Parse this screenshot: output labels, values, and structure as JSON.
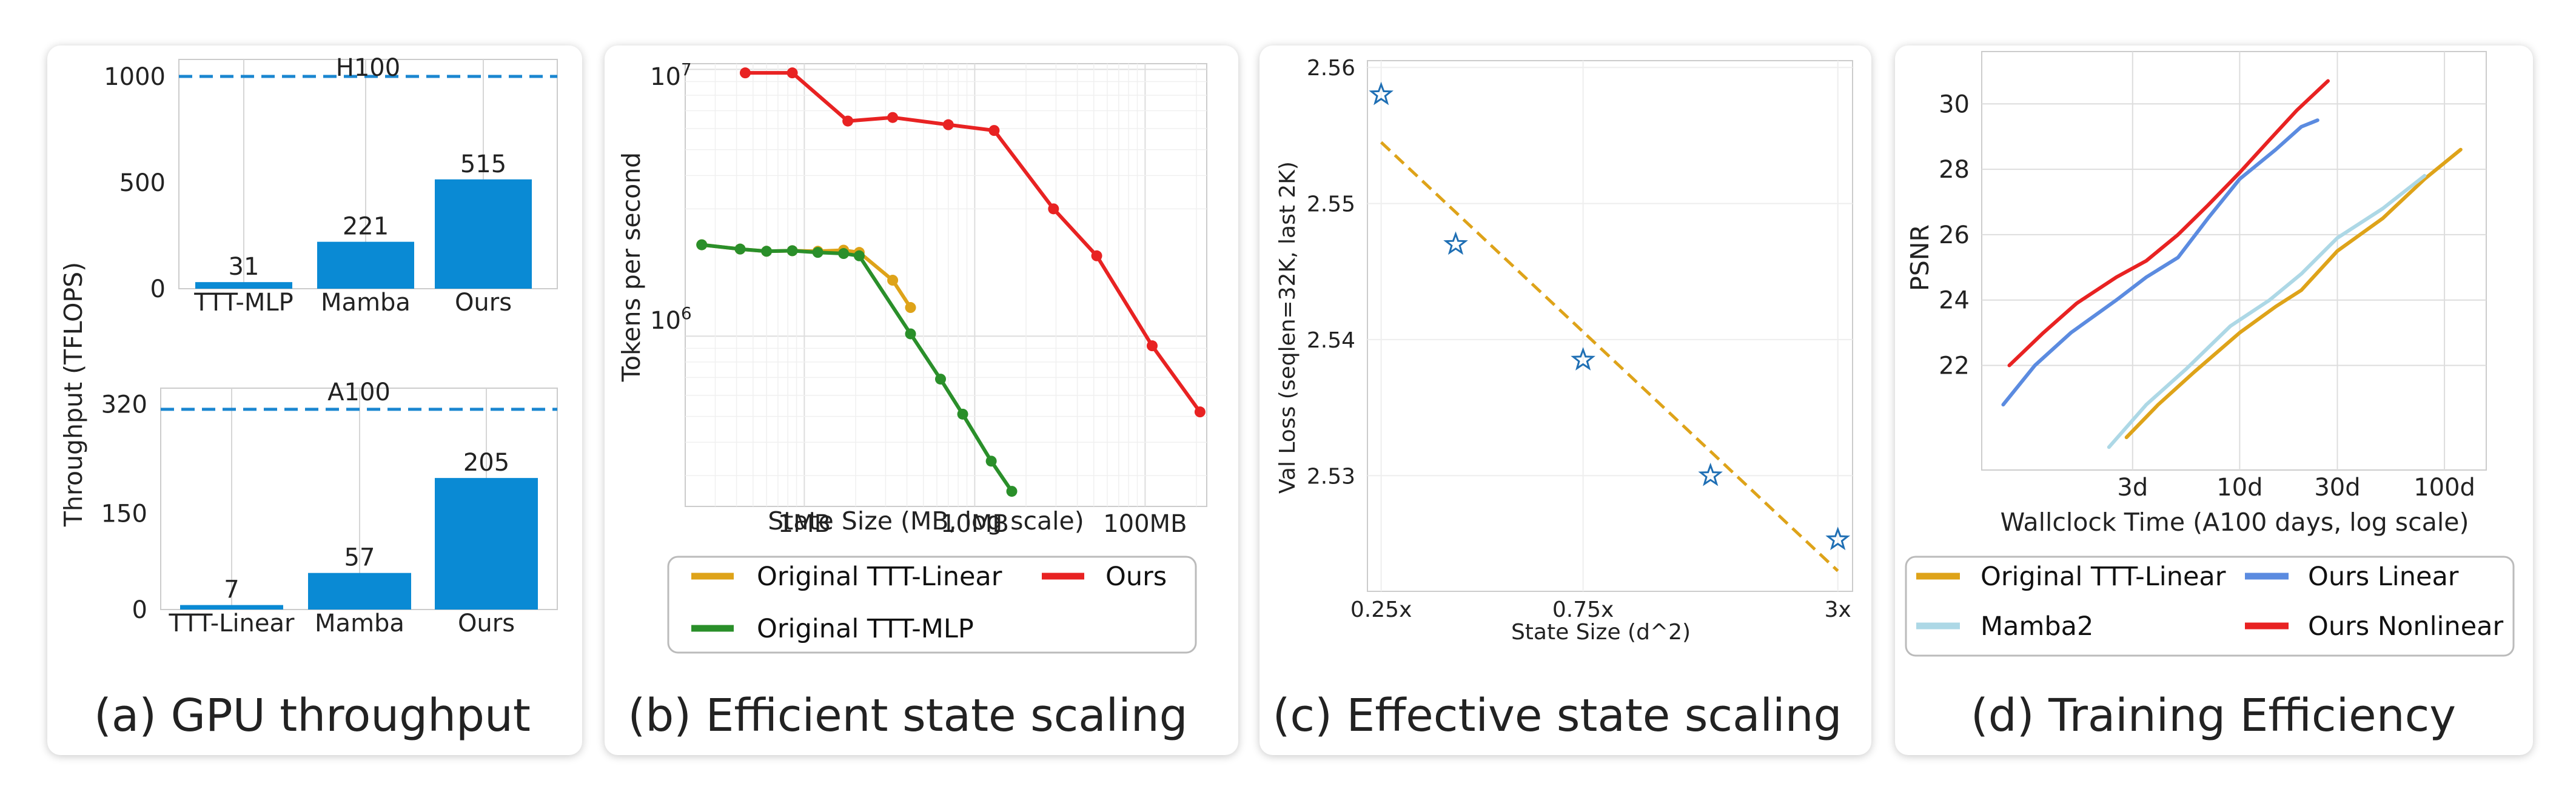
{
  "chart_data": [
    {
      "type": "bar",
      "caption": "(a) GPU throughput",
      "ylabel": "Throughput (TFLOPS)",
      "subplots": [
        {
          "title": "H100",
          "categories": [
            "TTT-MLP",
            "Mamba",
            "Ours"
          ],
          "values": [
            31,
            221,
            515
          ],
          "value_labels": [
            "31",
            "221",
            "515"
          ],
          "yticks": [
            "0",
            "500",
            "1000"
          ],
          "ylim": [
            0,
            1080
          ],
          "reference_line": 1000
        },
        {
          "title": "A100",
          "categories": [
            "TTT-Linear",
            "Mamba",
            "Ours"
          ],
          "values": [
            7,
            57,
            205
          ],
          "value_labels": [
            "7",
            "57",
            "205"
          ],
          "yticks": [
            "0",
            "150",
            "320"
          ],
          "ylim": [
            0,
            345
          ],
          "reference_line": 312
        }
      ],
      "color": "#0a8ad4"
    },
    {
      "type": "line",
      "caption": "(b) Efficient state scaling",
      "ylabel": "Tokens per second",
      "xlabel": "State Size (MB, log scale)",
      "xscale": "log",
      "yscale": "log",
      "xlim": [
        0.2,
        230
      ],
      "ylim": [
        230000,
        10500000
      ],
      "xticks": [
        "1MB",
        "10MB",
        "100MB"
      ],
      "yticks": [
        "10",
        "10"
      ],
      "ytick_exponents": [
        "7",
        "6"
      ],
      "series": [
        {
          "name": "Original TTT-Linear",
          "color": "#dea319",
          "x": [
            0.25,
            0.42,
            0.6,
            0.85,
            1.2,
            1.7,
            2.1,
            3.3,
            4.2
          ],
          "y": [
            2200000,
            2120000,
            2080000,
            2090000,
            2080000,
            2100000,
            2060000,
            1620000,
            1280000
          ]
        },
        {
          "name": "Original TTT-MLP",
          "color": "#2a8f2a",
          "x": [
            0.25,
            0.42,
            0.6,
            0.85,
            1.2,
            1.7,
            2.1,
            4.2,
            6.3,
            8.5,
            12.5,
            16.5
          ],
          "y": [
            2200000,
            2120000,
            2080000,
            2090000,
            2060000,
            2040000,
            2000000,
            1020000,
            690000,
            510000,
            340000,
            262000
          ]
        },
        {
          "name": "Ours",
          "color": "#e82222",
          "x": [
            0.45,
            0.85,
            1.8,
            3.3,
            7.0,
            13,
            29,
            52,
            110,
            210
          ],
          "y": [
            9700000,
            9700000,
            6400000,
            6600000,
            6200000,
            5900000,
            3000000,
            2000000,
            920000,
            520000
          ]
        }
      ],
      "legend": {
        "placement": "below",
        "entries": [
          "Original TTT-Linear",
          "Ours",
          "Original TTT-MLP"
        ]
      }
    },
    {
      "type": "scatter",
      "caption": "(c) Effective state scaling",
      "ylabel": "Val Loss (seqlen=32K, last 2K)",
      "xlabel": "State Size (d^2)",
      "xscale": "log",
      "xlim": [
        0.232,
        3.25
      ],
      "ylim": [
        2.5215,
        2.5605
      ],
      "xticks": [
        "0.25x",
        "0.75x",
        "3x"
      ],
      "yticks": [
        "2.56",
        "2.55",
        "2.54",
        "2.53"
      ],
      "points": {
        "x": [
          0.25,
          0.375,
          0.75,
          1.5,
          3.0
        ],
        "y": [
          2.558,
          2.547,
          2.5385,
          2.53,
          2.5253
        ],
        "marker": "star",
        "color": "#1f6fb4"
      },
      "trend": {
        "x": [
          0.25,
          3.0
        ],
        "y": [
          2.5545,
          2.523
        ],
        "color": "#dea319",
        "style": "dashed"
      }
    },
    {
      "type": "line",
      "caption": "(d) Training Efficiency",
      "ylabel": "PSNR",
      "xlabel": "Wallclock Time (A100 days, log scale)",
      "xscale": "log",
      "xlim": [
        0.55,
        160
      ],
      "ylim": [
        18.8,
        31.6
      ],
      "xticks": [
        "3d",
        "10d",
        "30d",
        "100d"
      ],
      "yticks": [
        "30",
        "28",
        "26",
        "24",
        "22"
      ],
      "series": [
        {
          "name": "Original TTT-Linear",
          "color": "#dea319",
          "x": [
            2.8,
            4,
            6,
            10,
            15,
            20,
            30,
            50,
            80,
            120
          ],
          "y": [
            19.8,
            20.8,
            21.8,
            23.0,
            23.8,
            24.3,
            25.5,
            26.5,
            27.7,
            28.6
          ]
        },
        {
          "name": "Mamba2",
          "color": "#add8e6",
          "x": [
            2.3,
            3.5,
            5.5,
            9,
            14,
            20,
            30,
            50,
            80
          ],
          "y": [
            19.5,
            20.8,
            21.9,
            23.2,
            24.0,
            24.8,
            25.9,
            26.8,
            27.8
          ]
        },
        {
          "name": "Ours Linear",
          "color": "#5b8be0",
          "x": [
            0.7,
            1.0,
            1.5,
            2.5,
            3.5,
            5,
            7,
            10,
            15,
            20,
            24
          ],
          "y": [
            20.8,
            22.0,
            23.0,
            24.0,
            24.7,
            25.3,
            26.5,
            27.7,
            28.6,
            29.3,
            29.5
          ]
        },
        {
          "name": "Ours Nonlinear",
          "color": "#e82222",
          "x": [
            0.75,
            1.1,
            1.6,
            2.5,
            3.5,
            5,
            7,
            10,
            14,
            19,
            24,
            27
          ],
          "y": [
            22.0,
            23.0,
            23.9,
            24.7,
            25.2,
            26.0,
            26.9,
            27.9,
            28.9,
            29.8,
            30.4,
            30.7
          ]
        }
      ],
      "legend": {
        "placement": "below",
        "entries": [
          "Original TTT-Linear",
          "Ours Linear",
          "Mamba2",
          "Ours Nonlinear"
        ]
      }
    }
  ]
}
